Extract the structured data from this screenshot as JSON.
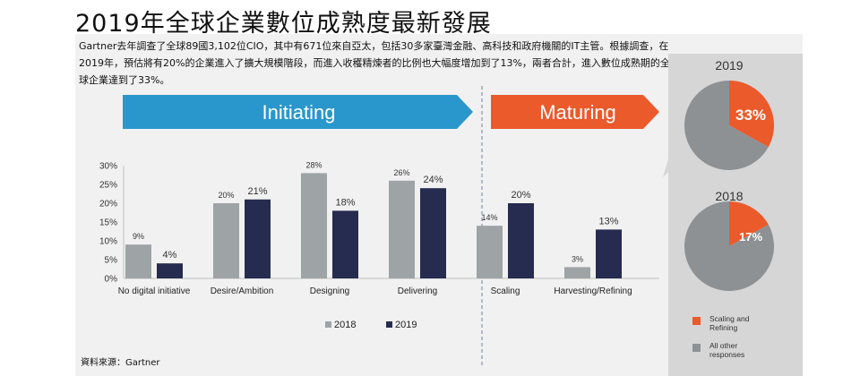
{
  "page": {
    "title": "2019年全球企業數位成熟度最新發展",
    "description": "Gartner去年調查了全球89國3,102位CIO，其中有671位來自亞太，包括30多家臺灣金融、高科技和政府機關的IT主管。根據調查，在2019年，預估將有20%的企業進入了擴大規模階段，而進入收穫精煉者的比例也大幅度增加到了13%，兩者合計，進入數位成熟期的全球企業達到了33%。",
    "source": "資料來源：Gartner"
  },
  "colors": {
    "s2018": "#9ea3a6",
    "s2019": "#262c50",
    "initiating": "#2a97cc",
    "maturing": "#eb5a2b",
    "pie_gray": "#8e9194",
    "pie_orange": "#eb5a2b",
    "side_bg": "#d6d6d6"
  },
  "chart_data": [
    {
      "type": "bar",
      "categories": [
        "No digital initiative",
        "Desire/Ambition",
        "Designing",
        "Delivering",
        "Scaling",
        "Harvesting/Refining"
      ],
      "series": [
        {
          "name": "2018",
          "values": [
            9,
            20,
            28,
            26,
            14,
            3
          ]
        },
        {
          "name": "2019",
          "values": [
            4,
            21,
            18,
            24,
            20,
            13
          ]
        }
      ],
      "ylim": [
        0,
        30
      ],
      "yticks": [
        "0%",
        "5%",
        "10%",
        "15%",
        "20%",
        "25%",
        "30%"
      ],
      "value_suffix": "%",
      "phases": [
        {
          "label": "Initiating",
          "categories": 4
        },
        {
          "label": "Maturing",
          "categories": 2
        }
      ],
      "legend_position": "bottom"
    },
    {
      "type": "pie",
      "title": "2019",
      "slices": [
        {
          "label": "Scaling and Refining",
          "value": 33
        },
        {
          "label": "All other responses",
          "value": 67
        }
      ],
      "value_label": "33%"
    },
    {
      "type": "pie",
      "title": "2018",
      "slices": [
        {
          "label": "Scaling and Refining",
          "value": 17
        },
        {
          "label": "All other responses",
          "value": 83
        }
      ],
      "value_label": "17%"
    }
  ],
  "pie_legend": [
    {
      "key": "orange",
      "lines": [
        "Scaling and",
        "Refining"
      ]
    },
    {
      "key": "gray",
      "lines": [
        "All other",
        "responses"
      ]
    }
  ]
}
